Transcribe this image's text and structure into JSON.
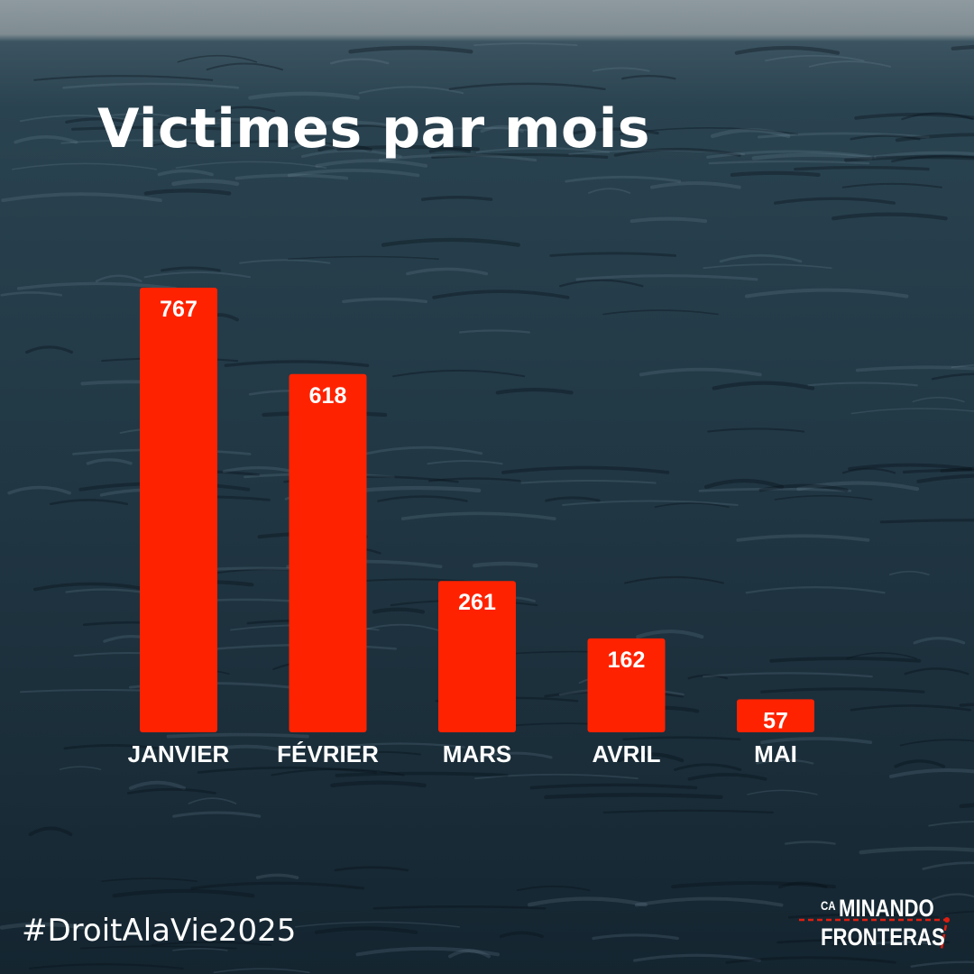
{
  "title": "Victimes par mois",
  "hashtag": "#DroitAlaVie2025",
  "logo": {
    "prefix": "CA",
    "line1": "MINANDO",
    "line2": "FRONTERAS"
  },
  "colors": {
    "bar": "#ff2200",
    "text": "#ffffff",
    "sea": "#233a47"
  },
  "chart_data": {
    "type": "bar",
    "title": "Victimes par mois",
    "categories": [
      "JANVIER",
      "FÉVRIER",
      "MARS",
      "AVRIL",
      "MAI"
    ],
    "values": [
      767,
      618,
      261,
      162,
      57
    ],
    "xlabel": "",
    "ylabel": "",
    "grid": false,
    "data_labels": "inside-top"
  }
}
